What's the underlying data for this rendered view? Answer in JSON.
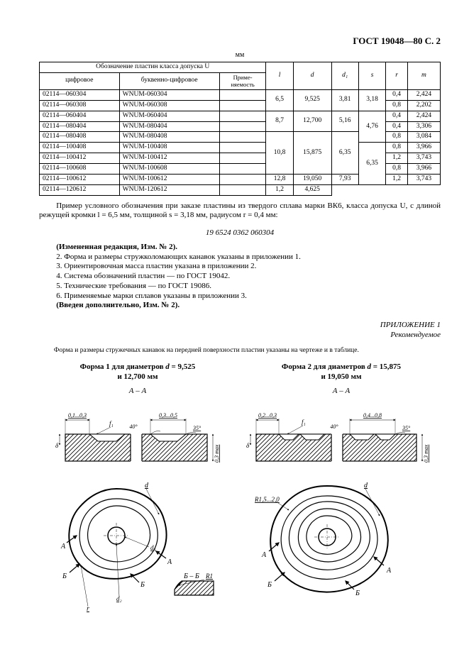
{
  "header": {
    "title": "ГОСТ 19048—80 С. 2"
  },
  "units_label": "мм",
  "table": {
    "group_header": "Обозначение пластин класса допуска U",
    "columns": [
      "цифровое",
      "буквенно-цифровое",
      "Приме-\nняемость",
      "l",
      "d",
      "d₁",
      "s",
      "r",
      "m"
    ],
    "rows": [
      {
        "c1": "02114—060304",
        "c2": "WNUM-060304",
        "c3": "",
        "l": "6,5",
        "d": "9,525",
        "d1": "3,81",
        "s": "3,18",
        "r": "0,4",
        "m": "2,424",
        "span": {
          "l": 2,
          "d": 2,
          "d1": 2,
          "s": 2
        }
      },
      {
        "c1": "02114—060308",
        "c2": "WNUM-060308",
        "c3": "",
        "r": "0,8",
        "m": "2,202"
      },
      {
        "c1": "02114—060404",
        "c2": "WNUM-060404",
        "c3": "",
        "l": "8,7",
        "d": "12,700",
        "d1": "5,16",
        "s": "4,76",
        "r": "0,4",
        "m": "2,424",
        "span": {
          "l": 2,
          "d": 2,
          "d1": 2,
          "s": 3
        }
      },
      {
        "c1": "02114—080404",
        "c2": "WNUM-080404",
        "c3": "",
        "r": "0,4",
        "m": "3,306"
      },
      {
        "c1": "02114—080408",
        "c2": "WNUM-080408",
        "c3": "",
        "l": "10,8",
        "d": "15,875",
        "d1": "6,35",
        "r": "0,8",
        "m": "3,084",
        "span": {
          "l": 4,
          "d": 4,
          "d1": 4
        }
      },
      {
        "c1": "02114—100408",
        "c2": "WNUM-100408",
        "c3": "",
        "s": "6,35",
        "r": "0,8",
        "m": "3,966",
        "span": {
          "s": 4
        }
      },
      {
        "c1": "02114—100412",
        "c2": "WNUM-100412",
        "c3": "",
        "r": "1,2",
        "m": "3,743"
      },
      {
        "c1": "02114—100608",
        "c2": "WNUM-100608",
        "c3": "",
        "r": "0,8",
        "m": "3,966"
      },
      {
        "c1": "02114—100612",
        "c2": "WNUM-100612",
        "c3": "",
        "l": "12,8",
        "d": "19,050",
        "d1": "7,93",
        "r": "1,2",
        "m": "3,743",
        "span": {
          "l": 1,
          "d": 1,
          "d1": 1
        }
      },
      {
        "c1": "02114—120612",
        "c2": "WNUM-120612",
        "c3": "",
        "r": "1,2",
        "m": "4,625"
      }
    ]
  },
  "example": {
    "text": "Пример условного обозначения при заказе пластины из твердого сплава марки ВК6, класса допуска U, с длиной режущей кромки l = 6,5 мм, толщиной s = 3,18 мм, радиусом  r = 0,4 мм:",
    "code": "19 6524 0362 060304"
  },
  "notes": [
    {
      "text": "(Измененная редакция, Изм. № 2).",
      "bold": true
    },
    {
      "text": "2. Форма и размеры стружколомающих канавок указаны в приложении 1."
    },
    {
      "text": "3. Ориентировочная масса пластин указана в приложении 2."
    },
    {
      "text": "4. Система обозначений пластин — по ГОСТ 19042."
    },
    {
      "text": "5. Технические требования — по ГОСТ 19086."
    },
    {
      "text": "6. Применяемые марки сплавов указаны в приложении 3."
    },
    {
      "text": "(Введен дополнительно, Изм. № 2).",
      "bold": true
    }
  ],
  "appendix": {
    "title": "ПРИЛОЖЕНИЕ 1",
    "subtitle": "Рекомендуемое",
    "caption": "Форма и размеры стружечных канавок на передней поверхности пластин указаны на чертеже и в таблице."
  },
  "figures": {
    "left": {
      "title1": "Форма 1 для диаметров d = 9,525",
      "title2": "и 12,700 мм",
      "section": "А – А",
      "dims": {
        "top_left": "0,1...0,3",
        "top_right": "0,3...0,5",
        "angle1": "40°",
        "angle2": "35°",
        "side": "0,3 max"
      },
      "plan": {
        "d": "d",
        "d1": "d₁",
        "d2": "d₂",
        "A": "А",
        "B": "Б",
        "BB": "Б – Б",
        "R1": "R1",
        "r": "r",
        "f1": "f₁"
      }
    },
    "right": {
      "title1": "Форма 2 для диаметров d = 15,875",
      "title2": "и 19,050 мм",
      "section": "А – А",
      "dims": {
        "top_left": "0,2...0,3",
        "top_right": "0,4...0,8",
        "angle1": "40°",
        "angle2": "35°",
        "side": "0,3 max"
      },
      "plan": {
        "d": "d",
        "R": "R1,5...2,0",
        "A": "А",
        "B": "Б",
        "f1": "f₁"
      }
    }
  },
  "style_tokens": {
    "bg": "#ffffff",
    "fg": "#000000",
    "stroke": "#000000",
    "hatch_stroke": "#000000",
    "font_sizes": {
      "header": 13,
      "body": 11,
      "table": 9.5,
      "dims": 8
    }
  }
}
